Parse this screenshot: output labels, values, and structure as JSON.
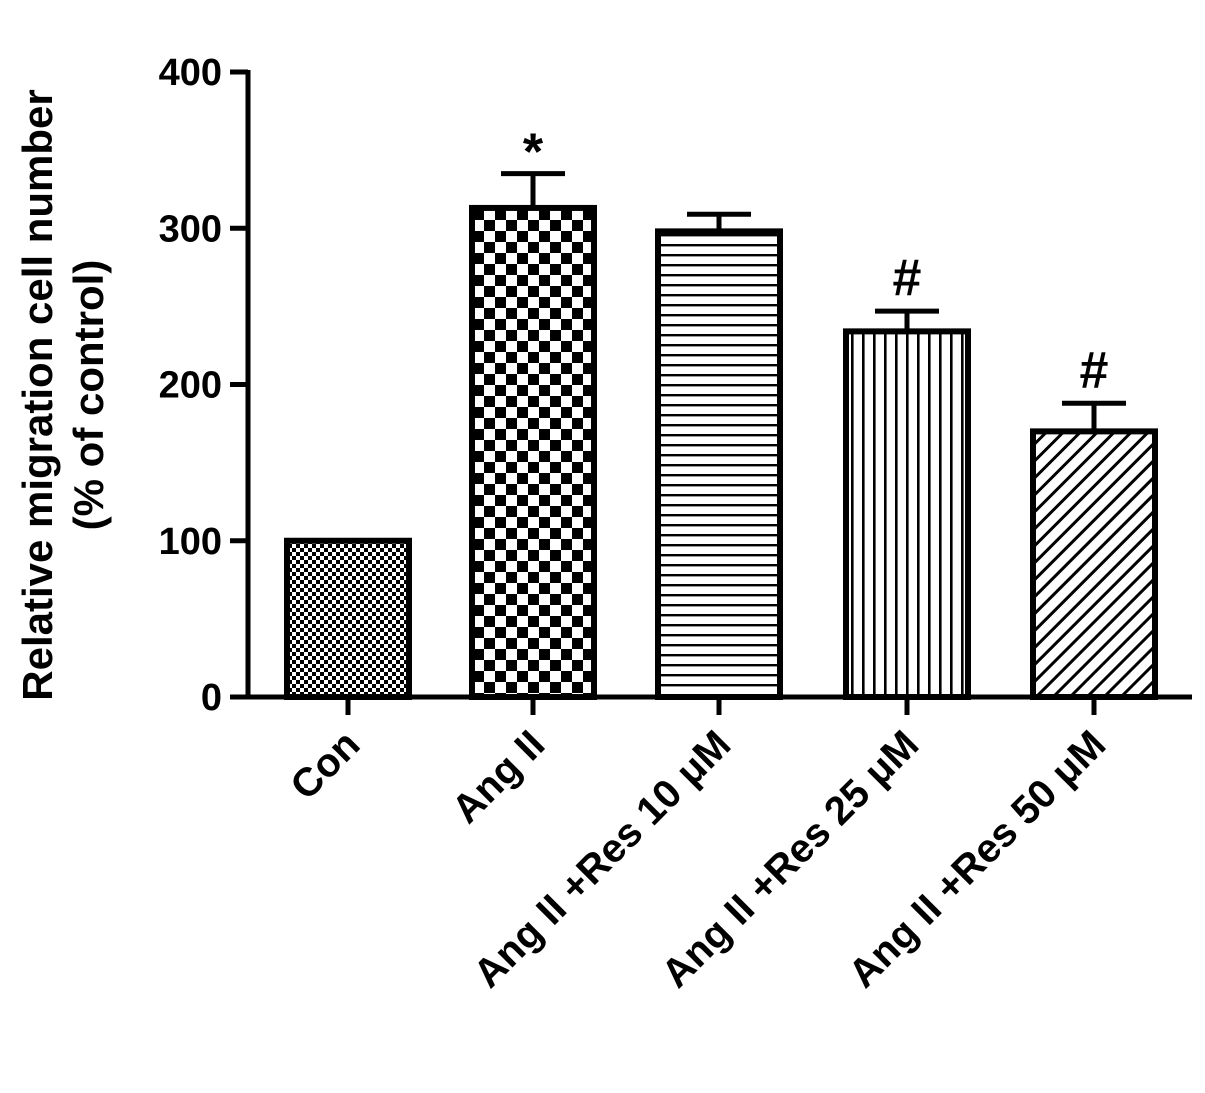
{
  "chart_data": {
    "type": "bar",
    "categories": [
      "Con",
      "Ang II",
      "Ang II +Res 10 μM",
      "Ang II +Res 25 μM",
      "Ang II +Res 50 μM"
    ],
    "values": [
      100,
      313,
      298,
      234,
      170
    ],
    "error": [
      0,
      22,
      11,
      13,
      18
    ],
    "annotations": [
      "",
      "*",
      "",
      "#",
      "#"
    ],
    "ylabel_lines": [
      "Relative migration cell number",
      "(% of control)"
    ],
    "xlabel": "",
    "ylim": [
      0,
      400
    ],
    "yticks": [
      0,
      100,
      200,
      300,
      400
    ],
    "patterns": [
      "dots",
      "checker",
      "hlines",
      "vlines",
      "diagonal"
    ],
    "bar_color": "#000000",
    "grid": false
  }
}
